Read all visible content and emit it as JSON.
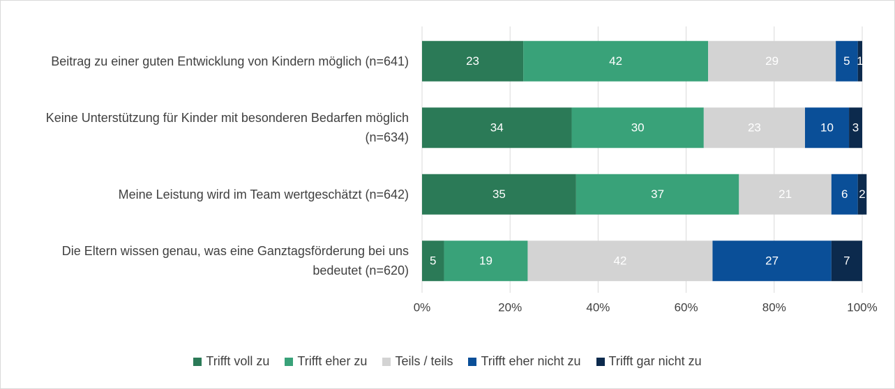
{
  "chart_data": {
    "type": "stacked_barh",
    "categories": [
      "Beitrag zu einer guten Entwicklung von Kindern möglich (n=641)",
      "Keine Unterstützung für Kinder mit besonderen Bedarfen möglich (n=634)",
      "Meine Leistung wird im Team wertgeschätzt (n=642)",
      "Die Eltern wissen genau, was eine Ganztagsförderung bei uns bedeutet (n=620)"
    ],
    "series": [
      {
        "name": "Trifft voll zu",
        "color": "#2b7a57",
        "values": [
          23,
          34,
          35,
          5
        ]
      },
      {
        "name": "Trifft eher zu",
        "color": "#39a279",
        "values": [
          42,
          30,
          37,
          19
        ]
      },
      {
        "name": "Teils / teils",
        "color": "#d3d3d3",
        "values": [
          29,
          23,
          21,
          42
        ]
      },
      {
        "name": "Trifft eher nicht zu",
        "color": "#0a4f98",
        "values": [
          5,
          10,
          6,
          27
        ]
      },
      {
        "name": "Trifft gar nicht zu",
        "color": "#0c2a4d",
        "values": [
          1,
          3,
          2,
          7
        ]
      }
    ],
    "xlim": [
      0,
      100
    ],
    "xticks": [
      {
        "value": 0,
        "label": "0%"
      },
      {
        "value": 20,
        "label": "20%"
      },
      {
        "value": 40,
        "label": "40%"
      },
      {
        "value": 60,
        "label": "60%"
      },
      {
        "value": 80,
        "label": "80%"
      },
      {
        "value": 100,
        "label": "100%"
      }
    ],
    "grid": true,
    "legend": "bottom"
  }
}
